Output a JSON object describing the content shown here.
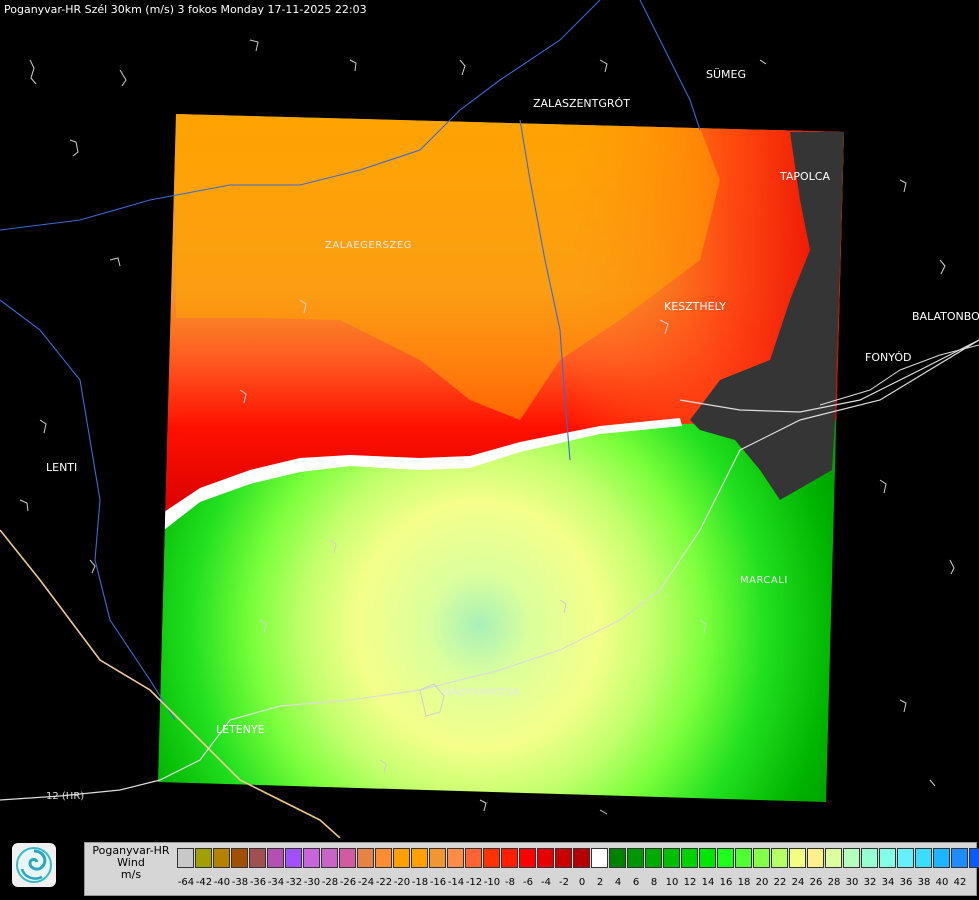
{
  "header": {
    "title": "Poganyvar-HR Szél 30km (m/s) 3 fokos Monday 17-11-2025 22:03"
  },
  "map": {
    "places": [
      {
        "id": "sumeg",
        "name": "SÜMEG"
      },
      {
        "id": "zalaszentgrot",
        "name": "ZALASZENTGRÓT"
      },
      {
        "id": "tapolca",
        "name": "TAPOLCA"
      },
      {
        "id": "zalaegerszeg",
        "name": "ZALAEGERSZEG"
      },
      {
        "id": "keszthely",
        "name": "KESZTHELY"
      },
      {
        "id": "balatonbo",
        "name": "BALATONBO"
      },
      {
        "id": "fonyod",
        "name": "FONYÓD"
      },
      {
        "id": "lenti",
        "name": "LENTI"
      },
      {
        "id": "marcali",
        "name": "MARCALI"
      },
      {
        "id": "nagykanizsa",
        "name": "NAGYKANIZSA"
      },
      {
        "id": "letenye",
        "name": "LETENYE"
      }
    ],
    "roads": [
      {
        "id": "r12hr",
        "name": "12 (HR)"
      }
    ],
    "colors": {
      "background": "#000000",
      "outflow_orange": "#ffa500",
      "outflow_red": "#ff0000",
      "inflow_green": "#00cc00",
      "inflow_light": "#ffff99",
      "no_data": "#333333"
    }
  },
  "legend": {
    "source": "Poganyvar-HR",
    "quantity": "Wind",
    "unit": "m/s",
    "colors": [
      "#c8c8c8",
      "#a0a000",
      "#b48200",
      "#a05000",
      "#a05050",
      "#b450b4",
      "#a050ff",
      "#c864dc",
      "#c864c8",
      "#d25aa0",
      "#e68246",
      "#ff8c32",
      "#ffa000",
      "#ffa000",
      "#f09632",
      "#ff8c46",
      "#ff6432",
      "#ff3200",
      "#ff1e00",
      "#ff0000",
      "#e60000",
      "#c80000",
      "#b40000",
      "#ffffff",
      "#008200",
      "#009600",
      "#00aa00",
      "#00be00",
      "#00d200",
      "#00e600",
      "#1eff1e",
      "#50ff32",
      "#82ff46",
      "#b4ff64",
      "#f0ff82",
      "#fff08c",
      "#dcffa0",
      "#b4ffbe",
      "#96ffd2",
      "#82ffe6",
      "#64f0ff",
      "#3cdcff",
      "#1eb4ff",
      "#1e8cff",
      "#0a5aff",
      "#0028ff"
    ],
    "ticks": [
      "-64",
      "-42",
      "-40",
      "-38",
      "-36",
      "-34",
      "-32",
      "-30",
      "-28",
      "-26",
      "-24",
      "-22",
      "-20",
      "-18",
      "-16",
      "-14",
      "-12",
      "-10",
      "-8",
      "-6",
      "-4",
      "-2",
      "0",
      "2",
      "4",
      "6",
      "8",
      "10",
      "12",
      "14",
      "16",
      "18",
      "20",
      "22",
      "24",
      "26",
      "28",
      "30",
      "32",
      "34",
      "36",
      "38",
      "40",
      "42"
    ]
  }
}
